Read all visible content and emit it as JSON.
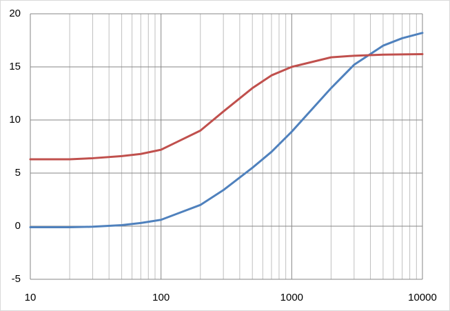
{
  "chart_data": {
    "type": "line",
    "x": [
      10,
      20,
      30,
      50,
      70,
      100,
      200,
      300,
      500,
      700,
      1000,
      2000,
      3000,
      5000,
      7000,
      10000
    ],
    "series": [
      {
        "color": "#4f81bd",
        "values": [
          -0.1,
          -0.1,
          -0.05,
          0.1,
          0.3,
          0.6,
          2.0,
          3.4,
          5.5,
          7.0,
          8.9,
          13.0,
          15.2,
          17.0,
          17.7,
          18.2
        ]
      },
      {
        "color": "#c0504d",
        "values": [
          6.3,
          6.3,
          6.4,
          6.6,
          6.8,
          7.2,
          9.0,
          10.8,
          13.0,
          14.2,
          15.0,
          15.9,
          16.05,
          16.15,
          16.18,
          16.2
        ]
      }
    ],
    "xlim": [
      10,
      10000
    ],
    "xticks": [
      10,
      100,
      1000,
      10000
    ],
    "xscale": "log",
    "ylim": [
      -5,
      20
    ],
    "yticks": [
      -5,
      0,
      5,
      10,
      15,
      20
    ],
    "grid": true,
    "minor_grid": true
  }
}
